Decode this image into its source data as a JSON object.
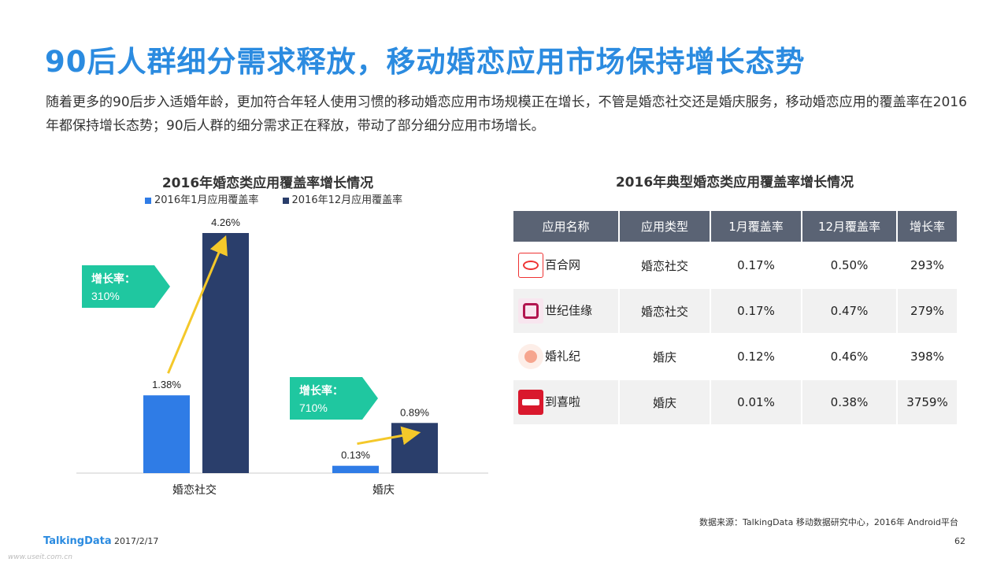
{
  "header": {
    "title": "90后人群细分需求释放，移动婚恋应用市场保持增长态势",
    "intro": "随着更多的90后步入适婚年龄，更加符合年轻人使用习惯的移动婚恋应用市场规模正在增长，不管是婚恋社交还是婚庆服务，移动婚恋应用的覆盖率在2016年都保持增长态势；90后人群的细分需求正在释放，带动了部分细分应用市场增长。"
  },
  "chart_data": {
    "type": "bar",
    "title": "2016年婚恋类应用覆盖率增长情况",
    "categories": [
      "婚恋社交",
      "婚庆"
    ],
    "series": [
      {
        "name": "2016年1月应用覆盖率",
        "values": [
          1.38,
          0.13
        ],
        "labels": [
          "1.38%",
          "0.13%"
        ],
        "color": "#2f7ce6"
      },
      {
        "name": "2016年12月应用覆盖率",
        "values": [
          4.26,
          0.89
        ],
        "labels": [
          "4.26%",
          "0.89%"
        ],
        "color": "#2a3e6b"
      }
    ],
    "ylim": [
      0,
      4.6
    ],
    "grid": false,
    "legend": "top",
    "annotations": [
      {
        "category": "婚恋社交",
        "label": "增长率：",
        "value": "310%",
        "color": "#1fc7a0"
      },
      {
        "category": "婚庆",
        "label": "增长率：",
        "value": "710%",
        "color": "#1fc7a0"
      }
    ],
    "arrow_color": "#f4c82a"
  },
  "table": {
    "title": "2016年典型婚恋类应用覆盖率增长情况",
    "headers": [
      "应用名称",
      "应用类型",
      "1月覆盖率",
      "12月覆盖率",
      "增长率"
    ],
    "rows": [
      {
        "icon": "baihe-app-icon",
        "name": "百合网",
        "type": "婚恋社交",
        "jan": "0.17%",
        "dec": "0.50%",
        "growth": "293%"
      },
      {
        "icon": "jiayuan-app-icon",
        "name": "世纪佳缘",
        "type": "婚恋社交",
        "jan": "0.17%",
        "dec": "0.47%",
        "growth": "279%"
      },
      {
        "icon": "hunliji-app-icon",
        "name": "婚礼纪",
        "type": "婚庆",
        "jan": "0.12%",
        "dec": "0.46%",
        "growth": "398%"
      },
      {
        "icon": "daoxila-app-icon",
        "name": "到喜啦",
        "type": "婚庆",
        "jan": "0.01%",
        "dec": "0.38%",
        "growth": "3759%"
      }
    ]
  },
  "footer": {
    "source": "数据来源：TalkingData 移动数据研究中心，2016年 Android平台",
    "brand": "TalkingData",
    "date": "2017/2/17",
    "page": "62",
    "watermark": "www.useit.com.cn"
  }
}
